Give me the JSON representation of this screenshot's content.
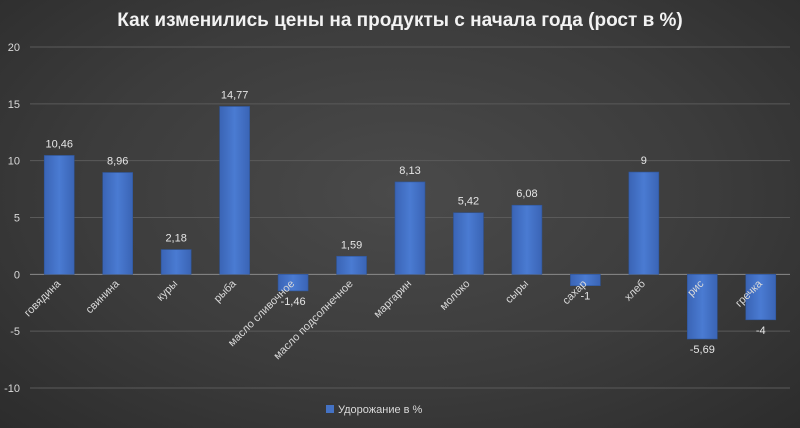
{
  "chart_data": {
    "type": "bar",
    "title": "Как изменились цены на продукты с начала года (рост в %)",
    "categories": [
      "говядина",
      "свинина",
      "куры",
      "рыба",
      "масло сливочное",
      "масло подсолнечное",
      "маргарин",
      "молоко",
      "сыры",
      "сахар",
      "хлеб",
      "рис",
      "гречка"
    ],
    "series": [
      {
        "name": "Удорожание в %",
        "values": [
          10.46,
          8.96,
          2.18,
          14.77,
          -1.46,
          1.59,
          8.13,
          5.42,
          6.08,
          -1,
          9,
          -5.69,
          -4
        ],
        "labels": [
          "10,46",
          "8,96",
          "2,18",
          "14,77",
          "-1,46",
          "1,59",
          "8,13",
          "5,42",
          "6,08",
          "-1",
          "9",
          "-5,69",
          "-4"
        ]
      }
    ],
    "yticks": [
      -10,
      -5,
      0,
      5,
      10,
      15,
      20
    ],
    "ylim": [
      -10,
      20
    ],
    "grid": true,
    "legend_position": "bottom",
    "colors": {
      "bar": "#4472c4",
      "bar_dark": "#2f5597",
      "background": "#3c3c3c"
    }
  }
}
